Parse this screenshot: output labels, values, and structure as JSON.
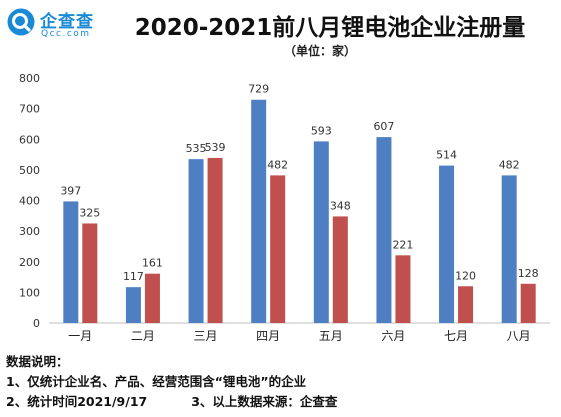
{
  "brand": {
    "name_cn": "企查查",
    "name_en": "Qcc.com",
    "color": "#1a8ad6"
  },
  "chart_data": {
    "type": "bar",
    "title": "2020-2021前八月锂电池企业注册量",
    "subtitle": "（单位：家）",
    "categories": [
      "一月",
      "二月",
      "三月",
      "四月",
      "五月",
      "六月",
      "七月",
      "八月"
    ],
    "series": [
      {
        "color": "#4f7fc3",
        "values": [
          397,
          117,
          535,
          729,
          593,
          607,
          514,
          482
        ]
      },
      {
        "color": "#c0504d",
        "values": [
          325,
          161,
          539,
          482,
          348,
          221,
          120,
          128
        ]
      }
    ],
    "ylim": [
      0,
      800
    ],
    "yticks": [
      0,
      100,
      200,
      300,
      400,
      500,
      600,
      700,
      800
    ],
    "grid": false,
    "legend": "none"
  },
  "notes": {
    "heading": "数据说明：",
    "line1": "1、仅统计企业名、产品、经营范围含“锂电池”的企业",
    "line2a": "2、统计时间2021/9/17",
    "line2b": "3、以上数据来源：企查查"
  }
}
